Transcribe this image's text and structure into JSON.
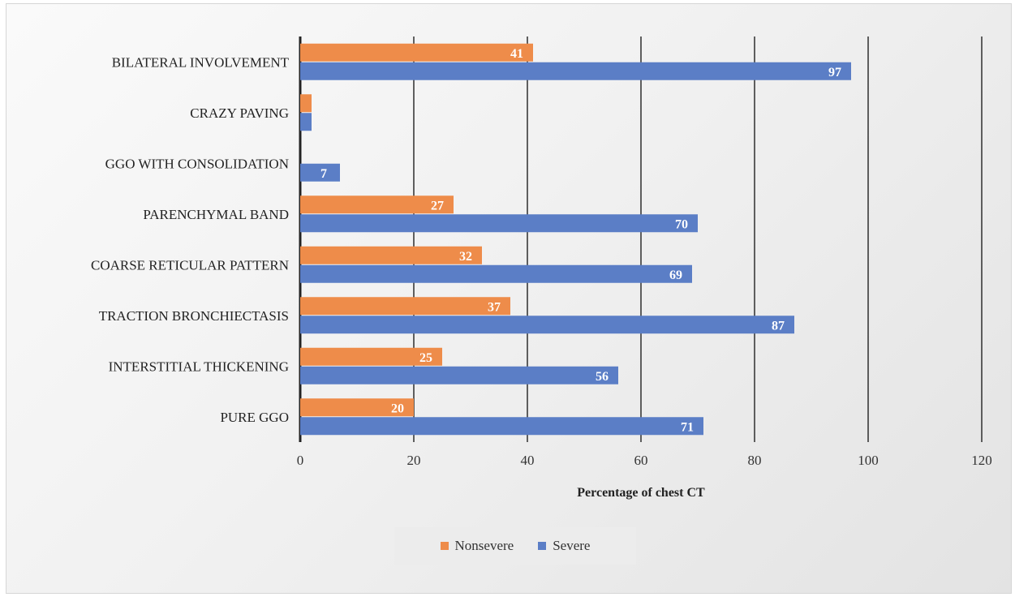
{
  "chart_data": {
    "type": "bar",
    "orientation": "horizontal",
    "categories": [
      "BILATERAL INVOLVEMENT",
      "CRAZY PAVING",
      "GGO WITH CONSOLIDATION",
      "PARENCHYMAL BAND",
      "COARSE RETICULAR PATTERN",
      "TRACTION BRONCHIECTASIS",
      "INTERSTITIAL THICKENING",
      "PURE GGO"
    ],
    "series": [
      {
        "name": "Nonsevere",
        "color": "#ee8c4a",
        "values": [
          41,
          2,
          0,
          27,
          32,
          37,
          25,
          20
        ],
        "data_labels": [
          "41",
          "",
          "",
          "27",
          "32",
          "37",
          "25",
          "20"
        ]
      },
      {
        "name": "Severe",
        "color": "#5b7ec6",
        "values": [
          97,
          2,
          7,
          70,
          69,
          87,
          56,
          71
        ],
        "data_labels": [
          "97",
          "",
          "7",
          "70",
          "69",
          "87",
          "56",
          "71"
        ]
      }
    ],
    "xlabel": "Percentage of chest CT",
    "ylabel": "",
    "xlim": [
      0,
      120
    ],
    "xticks": [
      "0",
      "20",
      "40",
      "60",
      "80",
      "100",
      "120"
    ],
    "grid": "vertical",
    "legend": "bottom"
  }
}
